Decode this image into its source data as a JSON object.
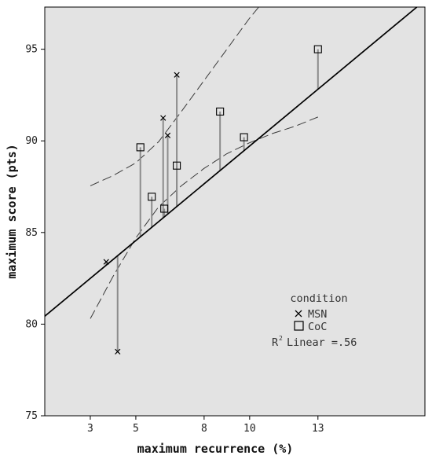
{
  "chart_data": {
    "type": "scatter",
    "xlabel": "maximum recurrence (%)",
    "ylabel": "maximum score (pts)",
    "xlim": [
      1,
      17.7
    ],
    "ylim": [
      75,
      97.3
    ],
    "x_ticks": [
      3,
      5,
      8,
      10,
      13
    ],
    "y_ticks": [
      75,
      80,
      85,
      90,
      95
    ],
    "x_tick_labels": [
      "3",
      "5",
      "8",
      "10",
      "13"
    ],
    "y_tick_labels": [
      "75",
      "80",
      "85",
      "90",
      "95"
    ],
    "background_color": "#e3e3e3",
    "fit_line": {
      "slope": 1.032,
      "intercept": 79.4
    },
    "confidence_band": {
      "upper": [
        [
          3.0,
          87.55
        ],
        [
          4.0,
          88.1
        ],
        [
          5.0,
          88.8
        ],
        [
          6.0,
          89.95
        ],
        [
          7.0,
          91.6
        ],
        [
          8.0,
          93.3
        ],
        [
          9.0,
          95.0
        ],
        [
          10.0,
          96.7
        ],
        [
          10.4,
          97.3
        ]
      ],
      "lower": [
        [
          3.0,
          80.3
        ],
        [
          4.0,
          82.6
        ],
        [
          5.0,
          84.7
        ],
        [
          6.0,
          86.4
        ],
        [
          7.0,
          87.55
        ],
        [
          8.0,
          88.5
        ],
        [
          9.0,
          89.3
        ],
        [
          10.0,
          89.9
        ],
        [
          11.0,
          90.4
        ],
        [
          12.0,
          90.8
        ],
        [
          13.0,
          91.3
        ]
      ]
    },
    "series": [
      {
        "name": "MSN",
        "marker": "x",
        "points": [
          [
            3.7,
            83.4
          ],
          [
            4.2,
            78.5
          ],
          [
            6.2,
            91.25
          ],
          [
            6.4,
            90.3
          ],
          [
            6.8,
            93.6
          ]
        ]
      },
      {
        "name": "CoC",
        "marker": "square",
        "points": [
          [
            5.2,
            89.65
          ],
          [
            5.7,
            86.95
          ],
          [
            6.25,
            86.3
          ],
          [
            6.8,
            88.65
          ],
          [
            8.7,
            91.6
          ],
          [
            9.75,
            90.2
          ],
          [
            13.0,
            95.0
          ]
        ]
      }
    ],
    "legend": {
      "title": "condition",
      "entries": [
        "MSN",
        "CoC"
      ],
      "r2_label": "R",
      "r2_sup": "2",
      "r2_text": "Linear =.56",
      "placement": "bottom-right"
    }
  }
}
